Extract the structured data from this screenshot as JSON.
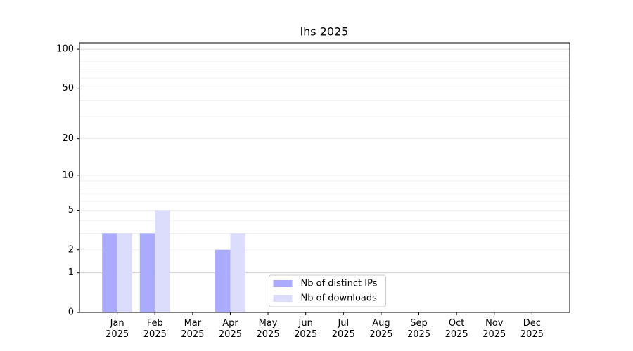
{
  "chart_data": {
    "type": "bar",
    "title": "lhs 2025",
    "categories": [
      "Jan\n2025",
      "Feb\n2025",
      "Mar\n2025",
      "Apr\n2025",
      "May\n2025",
      "Jun\n2025",
      "Jul\n2025",
      "Aug\n2025",
      "Sep\n2025",
      "Oct\n2025",
      "Nov\n2025",
      "Dec\n2025"
    ],
    "series": [
      {
        "name": "Nb of distinct IPs",
        "color": "#aaaaff",
        "values": [
          3,
          3,
          0,
          2,
          0,
          0,
          0,
          0,
          0,
          0,
          0,
          0
        ]
      },
      {
        "name": "Nb of downloads",
        "color": "#dcdcfc",
        "values": [
          3,
          5,
          0,
          3,
          0,
          0,
          0,
          0,
          0,
          0,
          0,
          0
        ]
      }
    ],
    "yscale": "log1p",
    "ylim": [
      0,
      112
    ],
    "yticks": [
      0,
      1,
      2,
      5,
      10,
      20,
      50,
      100
    ],
    "yminorticks": [
      3,
      4,
      6,
      7,
      8,
      9,
      30,
      40,
      60,
      70,
      80,
      90
    ],
    "grid": true,
    "legend": "lower center"
  }
}
